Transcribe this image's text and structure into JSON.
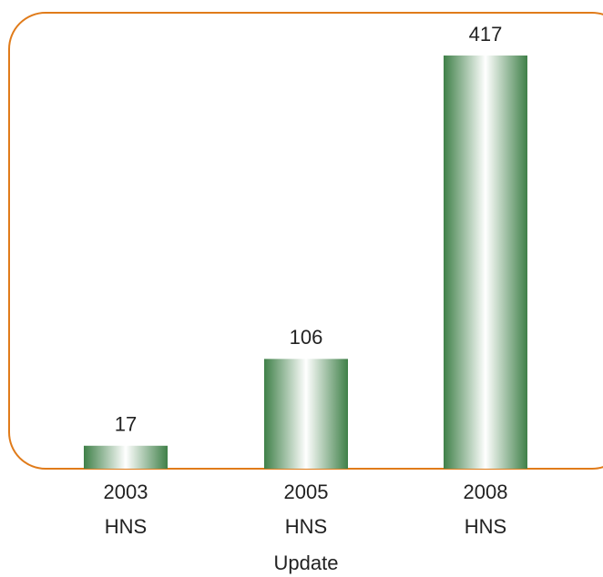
{
  "chart_data": {
    "type": "bar",
    "categories": [
      "2003 HNS",
      "2005 HNS",
      "2008 HNS"
    ],
    "values": [
      17,
      106,
      417
    ],
    "color": "#3f8048",
    "xlabel": "Update"
  }
}
